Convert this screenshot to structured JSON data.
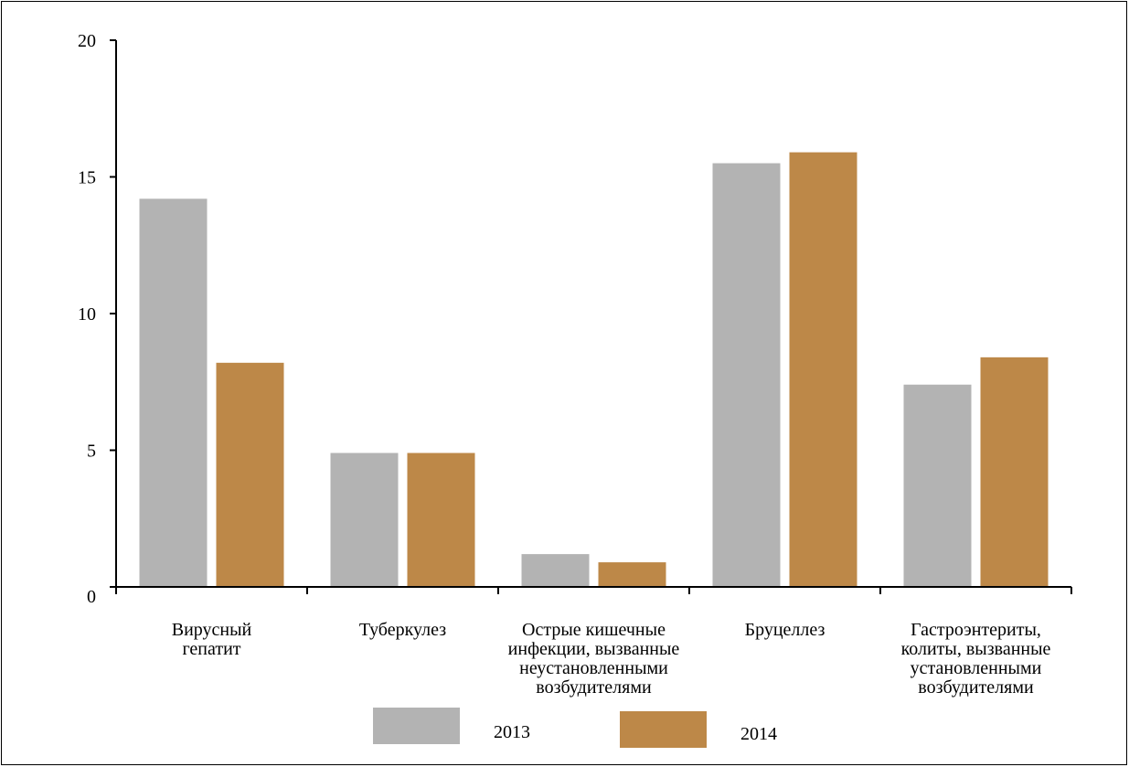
{
  "chart_data": {
    "type": "bar",
    "title": "",
    "xlabel": "",
    "ylabel": "",
    "ylim": [
      0,
      20
    ],
    "yticks": [
      0,
      5,
      10,
      15,
      20
    ],
    "grid": false,
    "legend_position": "bottom",
    "categories": [
      [
        "Вирусный",
        "гепатит"
      ],
      [
        "Туберкулез"
      ],
      [
        "Острые кишечные",
        "инфекции, вызванные",
        "неустановленными",
        "возбудителями"
      ],
      [
        "Бруцеллез"
      ],
      [
        "Гастроэнтериты,",
        "колиты, вызванные",
        "установленными",
        "возбудителями"
      ]
    ],
    "series": [
      {
        "name": "2013",
        "color": "#b3b3b3",
        "values": [
          14.2,
          4.9,
          1.2,
          15.5,
          7.4
        ]
      },
      {
        "name": "2014",
        "color": "#bd8848",
        "values": [
          8.2,
          4.9,
          0.9,
          15.9,
          8.4
        ]
      }
    ]
  }
}
